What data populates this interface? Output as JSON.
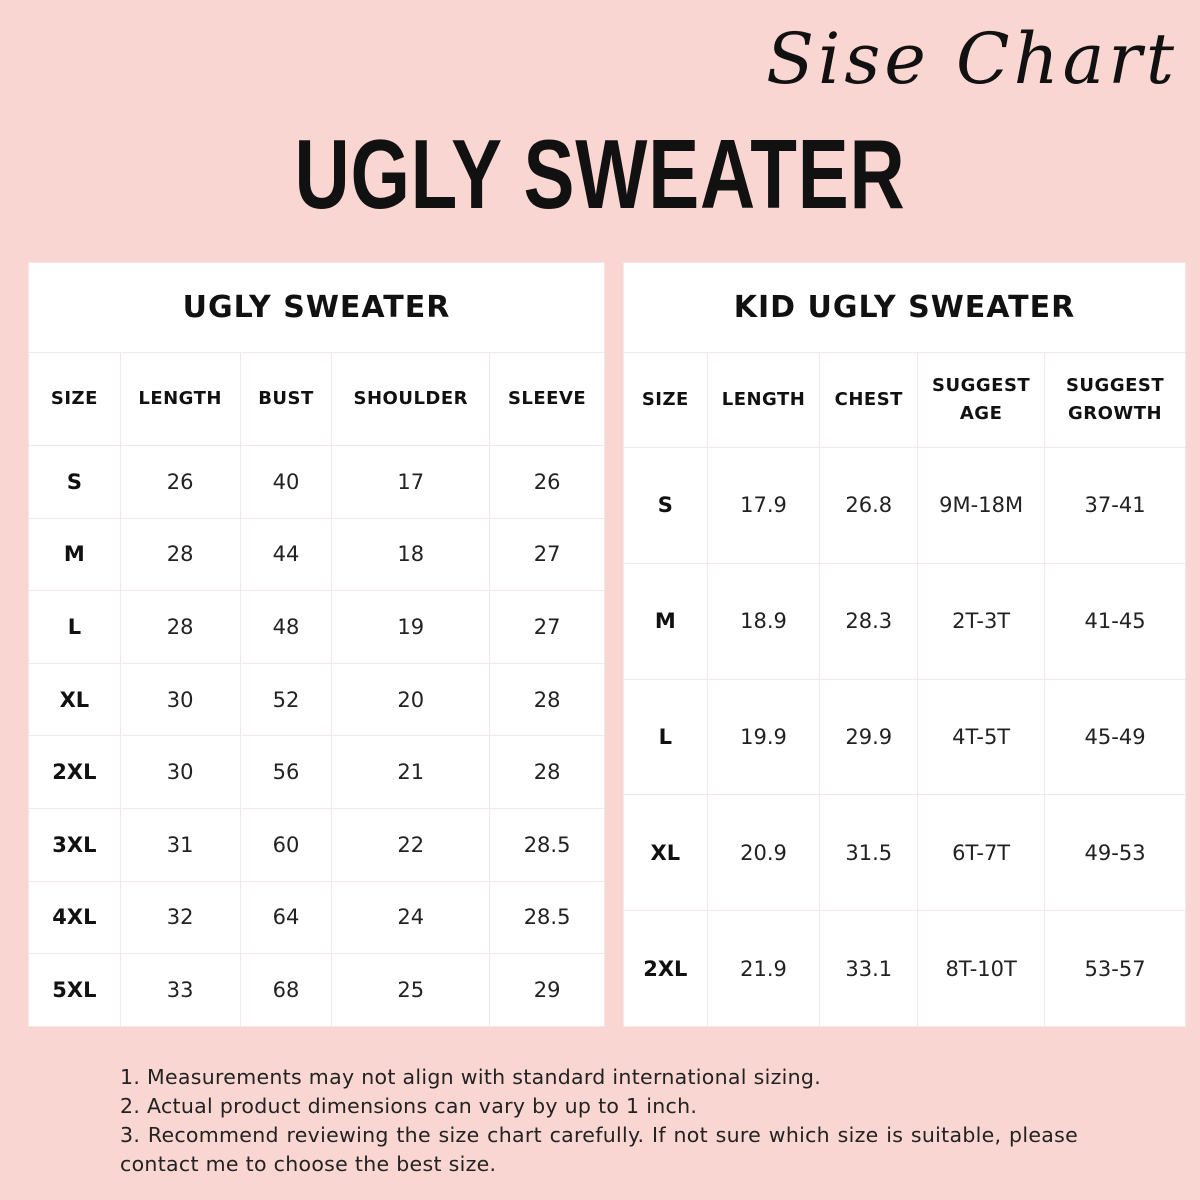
{
  "script_heading": "Sise Chart",
  "main_title": "UGLY SWEATER",
  "adult": {
    "title": "UGLY SWEATER",
    "headers": [
      "SIZE",
      "LENGTH",
      "BUST",
      "SHOULDER",
      "SLEEVE"
    ],
    "rows": [
      [
        "S",
        "26",
        "40",
        "17",
        "26"
      ],
      [
        "M",
        "28",
        "44",
        "18",
        "27"
      ],
      [
        "L",
        "28",
        "48",
        "19",
        "27"
      ],
      [
        "XL",
        "30",
        "52",
        "20",
        "28"
      ],
      [
        "2XL",
        "30",
        "56",
        "21",
        "28"
      ],
      [
        "3XL",
        "31",
        "60",
        "22",
        "28.5"
      ],
      [
        "4XL",
        "32",
        "64",
        "24",
        "28.5"
      ],
      [
        "5XL",
        "33",
        "68",
        "25",
        "29"
      ]
    ]
  },
  "kid": {
    "title": "KID UGLY SWEATER",
    "headers": [
      "SIZE",
      "LENGTH",
      "CHEST",
      "SUGGEST AGE",
      "SUGGEST GROWTH"
    ],
    "rows": [
      [
        "S",
        "17.9",
        "26.8",
        "9M-18M",
        "37-41"
      ],
      [
        "M",
        "18.9",
        "28.3",
        "2T-3T",
        "41-45"
      ],
      [
        "L",
        "19.9",
        "29.9",
        "4T-5T",
        "45-49"
      ],
      [
        "XL",
        "20.9",
        "31.5",
        "6T-7T",
        "49-53"
      ],
      [
        "2XL",
        "21.9",
        "33.1",
        "8T-10T",
        "53-57"
      ]
    ]
  },
  "notes": [
    "1. Measurements may not align with standard international sizing.",
    "2. Actual product dimensions can vary by up to 1 inch.",
    "3. Recommend reviewing the size chart carefully. If not sure which size is suitable, please contact me to choose the best size."
  ],
  "colors": {
    "background": "#f9d6d1",
    "table": "#ffffff",
    "grid": "#f3e8e6"
  }
}
